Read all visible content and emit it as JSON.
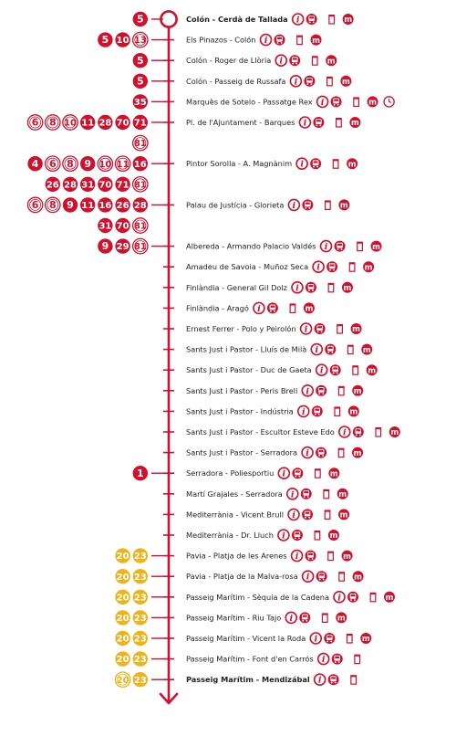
{
  "colors": {
    "line": "#d0102c",
    "connector": "#d0102c",
    "red_badge": "#d0102c",
    "yellow_badge": "#efb219",
    "text": "#222222",
    "white": "#ffffff"
  },
  "icons": {
    "info": "info-icon",
    "bus": "bus-icon",
    "bin": "bin-icon",
    "metro": "metro-icon",
    "clock": "clock-icon"
  },
  "stops": [
    {
      "name": "Colón - Cerdà de Tallada",
      "bold": true,
      "terminal": true,
      "routes": [
        [
          {
            "n": "5",
            "s": "r"
          }
        ]
      ],
      "services": [
        "info",
        "bus",
        "bin",
        "metro"
      ]
    },
    {
      "name": "Els Pinazos - Colón",
      "routes": [
        [
          {
            "n": "5",
            "s": "r"
          },
          {
            "n": "10",
            "s": "r"
          },
          {
            "n": "13",
            "s": "ro"
          }
        ]
      ],
      "services": [
        "info",
        "bus",
        "bin",
        "metro"
      ]
    },
    {
      "name": "Colón - Roger de Llòria",
      "routes": [
        [
          {
            "n": "5",
            "s": "r"
          }
        ]
      ],
      "services": [
        "info",
        "bus",
        "bin",
        "metro"
      ]
    },
    {
      "name": "Colón - Passeig de Russafa",
      "routes": [
        [
          {
            "n": "5",
            "s": "r"
          }
        ]
      ],
      "services": [
        "info",
        "bus",
        "bin",
        "metro"
      ]
    },
    {
      "name": "Marquès de Sotelo - Passatge Rex",
      "routes": [
        [
          {
            "n": "35",
            "s": "r"
          }
        ]
      ],
      "services": [
        "info",
        "bus",
        "bin",
        "metro",
        "clock"
      ]
    },
    {
      "name": "Pl. de l'Ajuntament - Barques",
      "routes": [
        [
          {
            "n": "6",
            "s": "ro"
          },
          {
            "n": "8",
            "s": "ro"
          },
          {
            "n": "10",
            "s": "ro"
          },
          {
            "n": "11",
            "s": "r"
          },
          {
            "n": "28",
            "s": "r"
          },
          {
            "n": "70",
            "s": "r"
          },
          {
            "n": "71",
            "s": "r"
          }
        ],
        [
          {
            "n": "81",
            "s": "ro"
          }
        ]
      ],
      "services": [
        "info",
        "bus",
        "bin",
        "metro"
      ]
    },
    {
      "name": "Pintor Sorolla - A. Magnànim",
      "routes": [
        [
          {
            "n": "4",
            "s": "r"
          },
          {
            "n": "6",
            "s": "ro"
          },
          {
            "n": "8",
            "s": "ro"
          },
          {
            "n": "9",
            "s": "r"
          },
          {
            "n": "10",
            "s": "ro"
          },
          {
            "n": "11",
            "s": "ro"
          },
          {
            "n": "16",
            "s": "r"
          }
        ],
        [
          {
            "n": "26",
            "s": "r"
          },
          {
            "n": "28",
            "s": "r"
          },
          {
            "n": "31",
            "s": "r"
          },
          {
            "n": "70",
            "s": "r"
          },
          {
            "n": "71",
            "s": "r"
          },
          {
            "n": "81",
            "s": "ro"
          }
        ]
      ],
      "services": [
        "info",
        "bus",
        "bin",
        "metro"
      ]
    },
    {
      "name": "Palau de Justícia - Glorieta",
      "routes": [
        [
          {
            "n": "6",
            "s": "ro"
          },
          {
            "n": "8",
            "s": "ro"
          },
          {
            "n": "9",
            "s": "r"
          },
          {
            "n": "11",
            "s": "r"
          },
          {
            "n": "16",
            "s": "r"
          },
          {
            "n": "26",
            "s": "r"
          },
          {
            "n": "28",
            "s": "r"
          }
        ],
        [
          {
            "n": "31",
            "s": "r"
          },
          {
            "n": "70",
            "s": "r"
          },
          {
            "n": "81",
            "s": "ro"
          }
        ]
      ],
      "services": [
        "info",
        "bus",
        "bin",
        "metro"
      ]
    },
    {
      "name": "Albereda - Armando Palacio Valdés",
      "routes": [
        [
          {
            "n": "9",
            "s": "r"
          },
          {
            "n": "29",
            "s": "r"
          },
          {
            "n": "81",
            "s": "ro"
          }
        ]
      ],
      "services": [
        "info",
        "bus",
        "bin",
        "metro"
      ]
    },
    {
      "name": "Amadeu de Savoia - Muñoz Seca",
      "routes": [],
      "services": [
        "info",
        "bus",
        "bin",
        "metro"
      ]
    },
    {
      "name": "Finlàndia - General Gil Dolz",
      "routes": [],
      "services": [
        "info",
        "bus",
        "bin",
        "metro"
      ]
    },
    {
      "name": "Finlàndia - Aragó",
      "routes": [],
      "services": [
        "info",
        "bus",
        "bin",
        "metro"
      ]
    },
    {
      "name": "Ernest Ferrer - Polo y Peirolón",
      "routes": [],
      "services": [
        "info",
        "bus",
        "bin",
        "metro"
      ]
    },
    {
      "name": "Sants Just i Pastor - Lluís de Milà",
      "routes": [],
      "services": [
        "info",
        "bus",
        "bin",
        "metro"
      ]
    },
    {
      "name": "Sants Just i Pastor - Duc de Gaeta",
      "routes": [],
      "services": [
        "info",
        "bus",
        "bin",
        "metro"
      ]
    },
    {
      "name": "Sants Just i Pastor - Peris Brell",
      "routes": [],
      "services": [
        "info",
        "bus",
        "bin",
        "metro"
      ]
    },
    {
      "name": "Sants Just i Pastor - Indústria",
      "routes": [],
      "services": [
        "info",
        "bus",
        "bin",
        "metro"
      ]
    },
    {
      "name": "Sants Just i Pastor - Escultor Esteve Edo",
      "routes": [],
      "services": [
        "info",
        "bus",
        "bin",
        "metro"
      ]
    },
    {
      "name": "Sants Just i Pastor - Serradora",
      "routes": [],
      "services": [
        "info",
        "bus",
        "bin",
        "metro"
      ]
    },
    {
      "name": "Serradora - Poliesportiu",
      "routes": [
        [
          {
            "n": "1",
            "s": "r"
          }
        ]
      ],
      "services": [
        "info",
        "bus",
        "bin",
        "metro"
      ]
    },
    {
      "name": "Martí Grajales - Serradora",
      "routes": [],
      "services": [
        "info",
        "bus",
        "bin",
        "metro"
      ]
    },
    {
      "name": "Mediterrània - Vicent Brull",
      "routes": [],
      "services": [
        "info",
        "bus",
        "bin",
        "metro"
      ]
    },
    {
      "name": "Mediterrània - Dr. Lluch",
      "routes": [],
      "services": [
        "info",
        "bus",
        "bin",
        "metro"
      ]
    },
    {
      "name": "Pavia - Platja de les Arenes",
      "routes": [
        [
          {
            "n": "20",
            "s": "y"
          },
          {
            "n": "23",
            "s": "y"
          }
        ]
      ],
      "services": [
        "info",
        "bus",
        "bin",
        "metro"
      ]
    },
    {
      "name": "Pavia - Platja de la Malva-rosa",
      "routes": [
        [
          {
            "n": "20",
            "s": "y"
          },
          {
            "n": "23",
            "s": "y"
          }
        ]
      ],
      "services": [
        "info",
        "bus",
        "bin",
        "metro"
      ]
    },
    {
      "name": "Passeig Marítim - Sèquia de la Cadena",
      "routes": [
        [
          {
            "n": "20",
            "s": "y"
          },
          {
            "n": "23",
            "s": "y"
          }
        ]
      ],
      "services": [
        "info",
        "bus",
        "bin",
        "metro"
      ]
    },
    {
      "name": "Passeig Marítim - Riu Tajo",
      "routes": [
        [
          {
            "n": "20",
            "s": "y"
          },
          {
            "n": "23",
            "s": "y"
          }
        ]
      ],
      "services": [
        "info",
        "bus",
        "bin",
        "metro"
      ]
    },
    {
      "name": "Passeig Marítim - Vicent la Roda",
      "routes": [
        [
          {
            "n": "20",
            "s": "y"
          },
          {
            "n": "23",
            "s": "y"
          }
        ]
      ],
      "services": [
        "info",
        "bus",
        "bin",
        "metro"
      ]
    },
    {
      "name": "Passeig Marítim - Font d'en Carrós",
      "routes": [
        [
          {
            "n": "20",
            "s": "y"
          },
          {
            "n": "23",
            "s": "y"
          }
        ]
      ],
      "services": [
        "info",
        "bus",
        "bin"
      ]
    },
    {
      "name": "Passeig Marítim - Mendizábal",
      "bold": true,
      "routes": [
        [
          {
            "n": "20",
            "s": "yo"
          },
          {
            "n": "23",
            "s": "y"
          }
        ]
      ],
      "services": [
        "info",
        "bus",
        "bin"
      ]
    }
  ]
}
